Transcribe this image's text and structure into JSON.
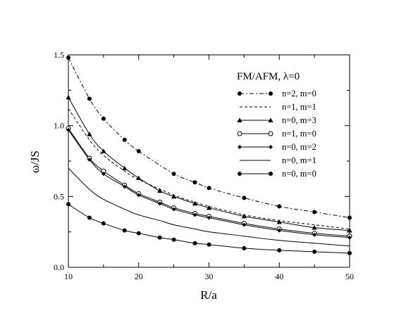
{
  "chart_data": {
    "type": "line",
    "title": "FM/AFM, λ=0",
    "xlabel": "R/a",
    "ylabel": "ω/JS",
    "xlim": [
      10,
      50
    ],
    "ylim": [
      0,
      1.5
    ],
    "x_ticks": [
      "10",
      "20",
      "30",
      "40",
      "50"
    ],
    "y_ticks": [
      "0.0",
      "0.5",
      "1.0",
      "1.5"
    ],
    "grid": false,
    "legend_position": "top-right",
    "series": [
      {
        "name": "n=2, m=0",
        "line": "dashdot",
        "marker": "filled-circle",
        "color": "#000000",
        "x": [
          10,
          13,
          15,
          18,
          20,
          25,
          28,
          30,
          35,
          40,
          45,
          50
        ],
        "y": [
          1.48,
          1.19,
          1.05,
          0.9,
          0.82,
          0.66,
          0.6,
          0.56,
          0.49,
          0.43,
          0.39,
          0.35
        ]
      },
      {
        "name": "n=1, m=1",
        "line": "dashed",
        "marker": "none",
        "color": "#000000",
        "x": [
          10,
          13,
          15,
          18,
          20,
          25,
          28,
          30,
          35,
          40,
          45,
          50
        ],
        "y": [
          1.12,
          0.9,
          0.79,
          0.68,
          0.62,
          0.51,
          0.46,
          0.43,
          0.37,
          0.33,
          0.3,
          0.27
        ]
      },
      {
        "name": "n=0, m=3",
        "line": "solid",
        "marker": "filled-triangle",
        "color": "#000000",
        "x": [
          10,
          13,
          15,
          18,
          20,
          23,
          25,
          28,
          30,
          35,
          40,
          45,
          50
        ],
        "y": [
          1.2,
          0.94,
          0.82,
          0.7,
          0.63,
          0.54,
          0.5,
          0.45,
          0.42,
          0.36,
          0.32,
          0.28,
          0.26
        ]
      },
      {
        "name": "n=1, m=0",
        "line": "solid",
        "marker": "open-circle",
        "color": "#000000",
        "x": [
          10,
          13,
          15,
          18,
          20,
          23,
          25,
          28,
          30,
          35,
          40,
          45,
          50
        ],
        "y": [
          0.98,
          0.77,
          0.68,
          0.58,
          0.52,
          0.46,
          0.42,
          0.38,
          0.36,
          0.31,
          0.27,
          0.24,
          0.22
        ]
      },
      {
        "name": "n=0, m=2",
        "line": "solid",
        "marker": "filled-diamond",
        "color": "#000000",
        "x": [
          10,
          13,
          15,
          18,
          20,
          23,
          25,
          28,
          30,
          35,
          40,
          45,
          50
        ],
        "y": [
          0.97,
          0.76,
          0.66,
          0.57,
          0.51,
          0.45,
          0.41,
          0.37,
          0.35,
          0.3,
          0.26,
          0.23,
          0.21
        ]
      },
      {
        "name": "n=0, m=1",
        "line": "solid",
        "marker": "none",
        "color": "#000000",
        "x": [
          10,
          13,
          15,
          18,
          20,
          23,
          25,
          28,
          30,
          35,
          40,
          45,
          50
        ],
        "y": [
          0.7,
          0.55,
          0.48,
          0.41,
          0.37,
          0.33,
          0.3,
          0.27,
          0.25,
          0.22,
          0.19,
          0.17,
          0.15
        ]
      },
      {
        "name": "n=0, m=0",
        "line": "solid",
        "marker": "filled-circle",
        "color": "#000000",
        "x": [
          10,
          13,
          15,
          18,
          20,
          23,
          25,
          28,
          30,
          35,
          40,
          45,
          50
        ],
        "y": [
          0.445,
          0.35,
          0.31,
          0.26,
          0.24,
          0.21,
          0.195,
          0.17,
          0.16,
          0.135,
          0.12,
          0.11,
          0.1
        ]
      }
    ]
  }
}
